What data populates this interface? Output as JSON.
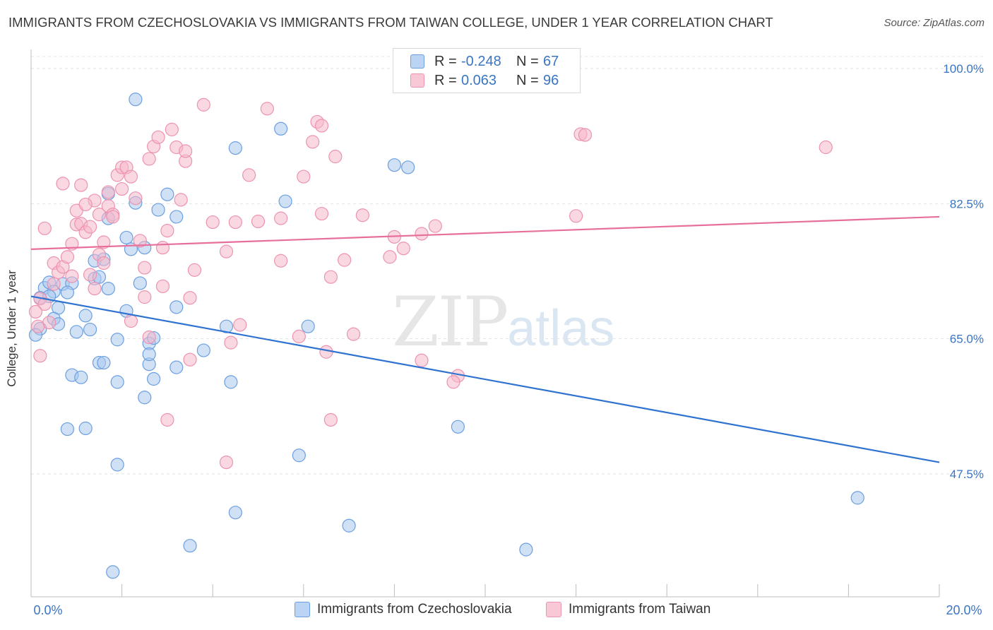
{
  "header": {
    "title": "IMMIGRANTS FROM CZECHOSLOVAKIA VS IMMIGRANTS FROM TAIWAN COLLEGE, UNDER 1 YEAR CORRELATION CHART",
    "source": "Source: ZipAtlas.com"
  },
  "watermark": {
    "zip": "ZIP",
    "atlas": "atlas"
  },
  "legend_top": {
    "rows": [
      {
        "r_label": "R =",
        "r_value": "-0.248",
        "n_label": "N =",
        "n_value": "67"
      },
      {
        "r_label": "R =",
        "r_value": "0.063",
        "n_label": "N =",
        "n_value": "96"
      }
    ]
  },
  "legend_bottom": {
    "czechoslovakia": "Immigrants from Czechoslovakia",
    "taiwan": "Immigrants from Taiwan"
  },
  "colors": {
    "blue_fill": "#a9c8ef",
    "blue_stroke": "#6b9fe0",
    "blue_line": "#2f72d0",
    "pink_fill": "#f5b8cb",
    "pink_stroke": "#ec93b0",
    "pink_line": "#e76f9b",
    "tick_label": "#3a75c4",
    "grid": "#e3e3e3"
  },
  "chart_data": {
    "type": "scatter",
    "title": "IMMIGRANTS FROM CZECHOSLOVAKIA VS IMMIGRANTS FROM TAIWAN COLLEGE, UNDER 1 YEAR CORRELATION CHART",
    "xlabel": "",
    "ylabel": "College, Under 1 year",
    "x_tick_labels": [
      "0.0%",
      "20.0%"
    ],
    "y_tick_labels": [
      "100.0%",
      "82.5%",
      "65.0%",
      "47.5%"
    ],
    "y_ticks": [
      100.0,
      82.5,
      65.0,
      47.5
    ],
    "xlim": [
      0,
      20
    ],
    "ylim": [
      33.5,
      102
    ],
    "grid": true,
    "legend_position": "bottom",
    "series": [
      {
        "name": "Immigrants from Czechoslovakia",
        "R": -0.248,
        "N": 67,
        "trend": {
          "x": [
            0,
            20
          ],
          "y": [
            70.5,
            49.0
          ]
        },
        "points": [
          [
            0.3,
            71.6
          ],
          [
            0.4,
            72.3
          ],
          [
            0.2,
            70.3
          ],
          [
            0.5,
            71.1
          ],
          [
            0.7,
            72.1
          ],
          [
            0.9,
            72.2
          ],
          [
            0.4,
            70.5
          ],
          [
            0.8,
            71.0
          ],
          [
            0.6,
            69.0
          ],
          [
            0.5,
            67.6
          ],
          [
            1.2,
            68.0
          ],
          [
            0.6,
            66.9
          ],
          [
            1.3,
            66.2
          ],
          [
            1.0,
            65.9
          ],
          [
            1.4,
            72.8
          ],
          [
            1.5,
            73.0
          ],
          [
            1.4,
            75.1
          ],
          [
            1.6,
            75.3
          ],
          [
            1.7,
            71.5
          ],
          [
            1.7,
            83.8
          ],
          [
            1.7,
            80.6
          ],
          [
            2.1,
            78.1
          ],
          [
            2.2,
            76.6
          ],
          [
            2.3,
            82.6
          ],
          [
            2.5,
            76.8
          ],
          [
            2.8,
            81.7
          ],
          [
            3.2,
            80.8
          ],
          [
            3.0,
            83.7
          ],
          [
            2.4,
            72.2
          ],
          [
            2.1,
            68.6
          ],
          [
            1.9,
            64.9
          ],
          [
            2.6,
            64.4
          ],
          [
            2.7,
            65.1
          ],
          [
            2.6,
            61.7
          ],
          [
            2.7,
            59.8
          ],
          [
            2.5,
            57.4
          ],
          [
            3.2,
            61.3
          ],
          [
            3.2,
            69.1
          ],
          [
            1.5,
            61.9
          ],
          [
            1.6,
            61.9
          ],
          [
            1.9,
            59.4
          ],
          [
            0.9,
            60.3
          ],
          [
            1.1,
            60.0
          ],
          [
            0.8,
            53.3
          ],
          [
            1.2,
            53.4
          ],
          [
            1.9,
            48.7
          ],
          [
            2.3,
            96.0
          ],
          [
            4.5,
            89.7
          ],
          [
            5.5,
            92.2
          ],
          [
            5.6,
            82.8
          ],
          [
            8.0,
            87.5
          ],
          [
            8.3,
            87.2
          ],
          [
            4.3,
            66.6
          ],
          [
            4.4,
            59.4
          ],
          [
            5.9,
            49.9
          ],
          [
            6.1,
            66.6
          ],
          [
            4.5,
            42.5
          ],
          [
            7.0,
            40.8
          ],
          [
            3.5,
            38.2
          ],
          [
            9.4,
            53.6
          ],
          [
            10.9,
            37.7
          ],
          [
            18.2,
            44.4
          ],
          [
            1.8,
            34.8
          ],
          [
            0.2,
            66.3
          ],
          [
            0.1,
            65.5
          ],
          [
            2.6,
            63.0
          ],
          [
            3.8,
            63.5
          ]
        ]
      },
      {
        "name": "Immigrants from Taiwan",
        "R": 0.063,
        "N": 96,
        "trend": {
          "x": [
            0,
            20
          ],
          "y": [
            76.6,
            80.8
          ]
        },
        "points": [
          [
            0.2,
            70.2
          ],
          [
            0.3,
            69.5
          ],
          [
            0.4,
            67.1
          ],
          [
            0.5,
            74.8
          ],
          [
            0.6,
            73.6
          ],
          [
            0.7,
            74.3
          ],
          [
            0.8,
            75.6
          ],
          [
            0.9,
            77.3
          ],
          [
            1.0,
            79.8
          ],
          [
            1.1,
            79.9
          ],
          [
            1.2,
            78.8
          ],
          [
            1.3,
            79.5
          ],
          [
            1.1,
            84.9
          ],
          [
            1.3,
            73.3
          ],
          [
            1.4,
            71.5
          ],
          [
            1.5,
            75.9
          ],
          [
            1.6,
            74.8
          ],
          [
            1.4,
            82.9
          ],
          [
            1.5,
            81.1
          ],
          [
            1.7,
            84.0
          ],
          [
            1.7,
            82.2
          ],
          [
            1.8,
            81.1
          ],
          [
            1.8,
            80.8
          ],
          [
            1.9,
            86.2
          ],
          [
            2.0,
            84.4
          ],
          [
            2.0,
            87.2
          ],
          [
            2.1,
            87.2
          ],
          [
            2.2,
            86.0
          ],
          [
            2.3,
            83.2
          ],
          [
            2.4,
            77.7
          ],
          [
            2.5,
            74.2
          ],
          [
            2.5,
            70.4
          ],
          [
            2.6,
            65.2
          ],
          [
            2.7,
            89.9
          ],
          [
            2.8,
            91.1
          ],
          [
            2.9,
            71.8
          ],
          [
            3.0,
            79.0
          ],
          [
            3.1,
            92.1
          ],
          [
            3.2,
            89.8
          ],
          [
            3.3,
            83.0
          ],
          [
            3.4,
            88.0
          ],
          [
            3.5,
            70.3
          ],
          [
            3.6,
            73.9
          ],
          [
            3.5,
            62.3
          ],
          [
            3.8,
            95.3
          ],
          [
            4.0,
            80.1
          ],
          [
            4.3,
            76.3
          ],
          [
            4.4,
            64.5
          ],
          [
            4.6,
            66.8
          ],
          [
            4.8,
            86.2
          ],
          [
            5.0,
            80.2
          ],
          [
            5.2,
            94.8
          ],
          [
            5.5,
            80.6
          ],
          [
            5.9,
            65.3
          ],
          [
            6.0,
            86.0
          ],
          [
            6.3,
            93.1
          ],
          [
            6.4,
            92.6
          ],
          [
            6.5,
            63.3
          ],
          [
            6.6,
            73.0
          ],
          [
            6.7,
            88.6
          ],
          [
            6.9,
            75.2
          ],
          [
            7.1,
            65.6
          ],
          [
            7.9,
            75.6
          ],
          [
            8.0,
            78.2
          ],
          [
            8.2,
            76.7
          ],
          [
            8.6,
            78.6
          ],
          [
            8.6,
            62.2
          ],
          [
            9.4,
            60.2
          ],
          [
            9.3,
            59.4
          ],
          [
            12.0,
            80.9
          ],
          [
            12.1,
            91.5
          ],
          [
            12.2,
            91.4
          ],
          [
            17.5,
            89.8
          ],
          [
            0.1,
            68.5
          ],
          [
            0.15,
            66.6
          ],
          [
            0.3,
            79.3
          ],
          [
            0.5,
            72.1
          ],
          [
            0.2,
            62.8
          ],
          [
            0.9,
            73.1
          ],
          [
            1.0,
            81.6
          ],
          [
            2.2,
            67.3
          ],
          [
            3.0,
            54.5
          ],
          [
            4.3,
            49.0
          ],
          [
            6.6,
            54.5
          ],
          [
            3.4,
            89.3
          ],
          [
            2.9,
            76.8
          ],
          [
            6.2,
            90.5
          ],
          [
            6.4,
            81.2
          ],
          [
            1.6,
            77.5
          ],
          [
            4.5,
            80.1
          ],
          [
            7.3,
            81.0
          ],
          [
            8.9,
            79.6
          ],
          [
            2.6,
            88.3
          ],
          [
            1.2,
            82.4
          ],
          [
            0.7,
            85.1
          ],
          [
            5.5,
            75.1
          ]
        ]
      }
    ]
  }
}
